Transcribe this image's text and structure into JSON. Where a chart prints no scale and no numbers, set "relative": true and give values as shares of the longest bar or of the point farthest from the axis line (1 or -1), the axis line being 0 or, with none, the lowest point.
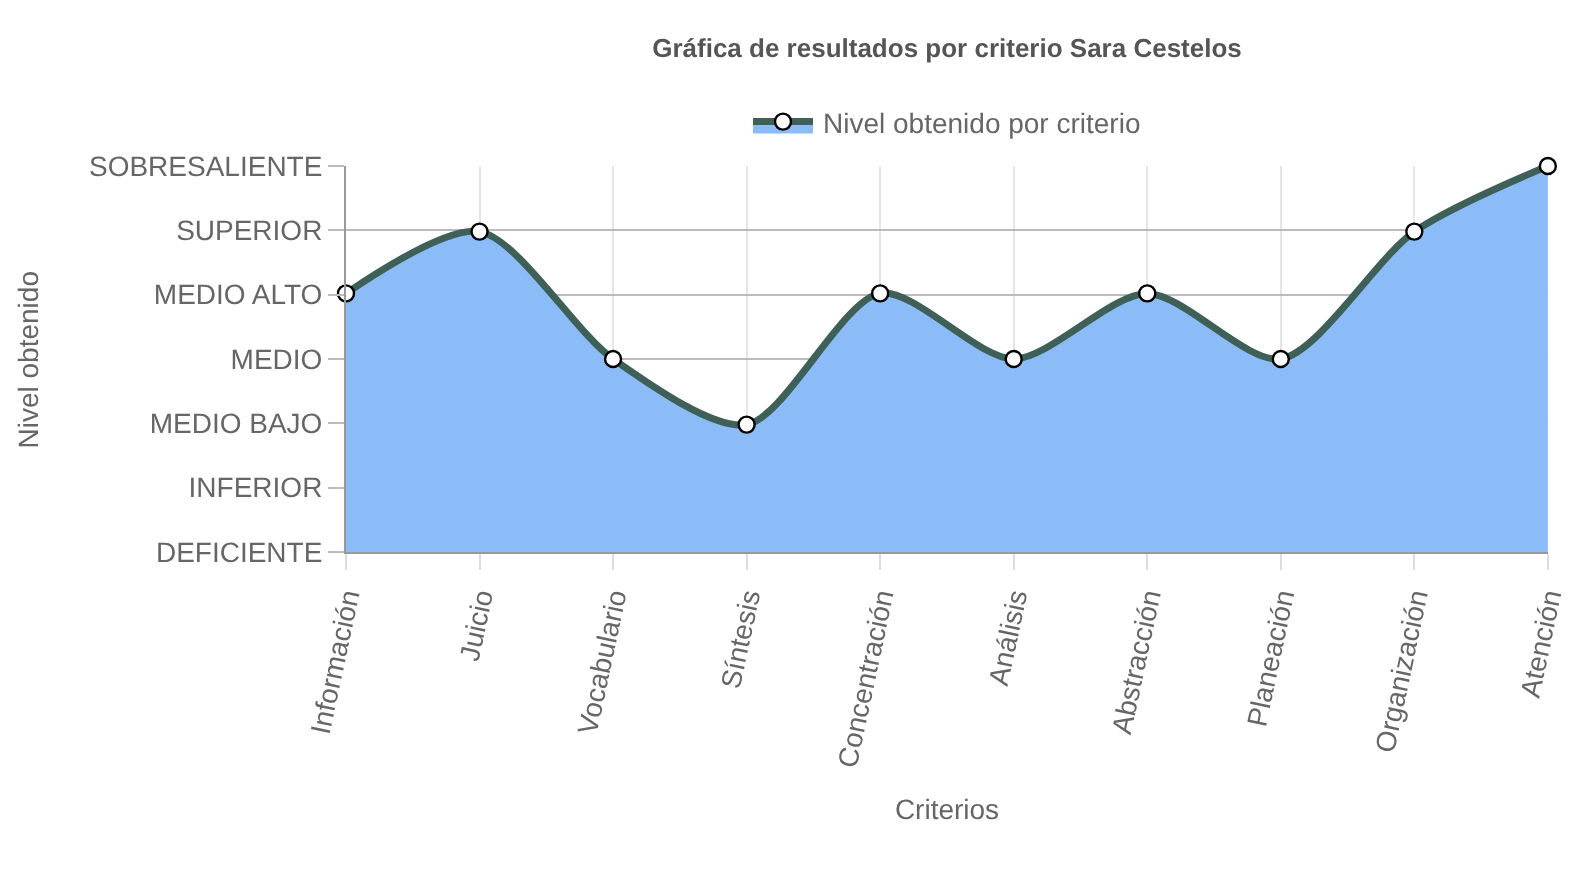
{
  "chart_data": {
    "type": "area",
    "title": "Gráfica de resultados por criterio Sara Cestelos",
    "xlabel": "Criterios",
    "annotations": [
      "Nivel obtenido"
    ],
    "relative": true,
    "categories": [
      "Información",
      "Juicio",
      "Vocabulario",
      "Síntesis",
      "Concentración",
      "Análisis",
      "Abstracción",
      "Planeación",
      "Organización",
      "Atención"
    ],
    "y_categories": [
      "SOBRESALIENTE",
      "SUPERIOR",
      "MEDIO ALTO",
      "MEDIO",
      "MEDIO BAJO",
      "INFERIOR",
      "DEFICIENTE"
    ],
    "series": [
      {
        "name": "Nivel obtenido por criterio",
        "color": "#8bbcf7",
        "values": [
          0.67,
          0.83,
          0.5,
          0.33,
          0.67,
          0.5,
          0.67,
          0.5,
          0.83,
          1
        ]
      }
    ],
    "grid": true,
    "legend": "top",
    "marker": "circle",
    "line_style": "solid"
  }
}
